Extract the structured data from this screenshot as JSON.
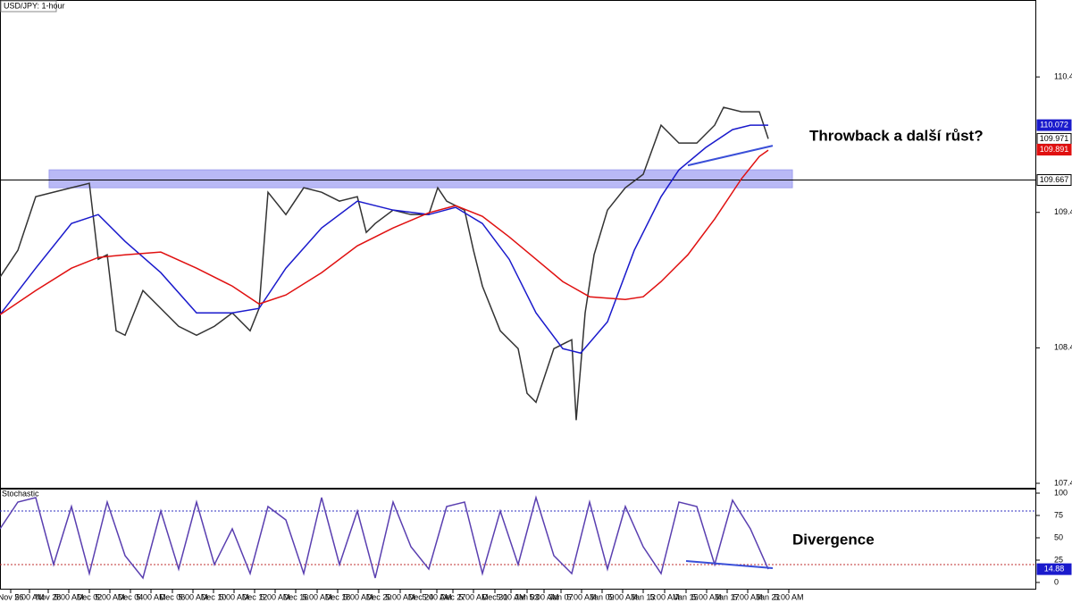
{
  "chart_data": [
    {
      "type": "line",
      "title": "USD/JPY: 1-hour",
      "annotation": "Throwback a další růst?",
      "xlim": [
        0,
        116
      ],
      "ylim": [
        107.395,
        110.996
      ],
      "yticks": [
        107.428,
        108.428,
        109.428,
        110.428
      ],
      "series": [
        {
          "color": "#333333",
          "x": [
            0,
            2,
            4,
            6,
            8,
            10,
            11,
            12,
            13,
            14,
            16,
            18,
            20,
            22,
            24,
            26,
            28,
            29,
            30,
            32,
            34,
            36,
            38,
            40,
            41,
            42,
            44,
            46,
            48,
            49,
            50,
            52,
            53,
            54,
            56,
            58,
            59,
            60,
            62,
            64,
            64.5,
            65.5,
            66.5,
            68,
            70,
            72,
            74,
            76,
            78,
            80,
            81,
            83,
            85,
            86
          ],
          "values": [
            108.95,
            109.148,
            109.544,
            109.577,
            109.61,
            109.643,
            109.082,
            109.115,
            108.554,
            108.521,
            108.851,
            108.719,
            108.587,
            108.521,
            108.587,
            108.686,
            108.554,
            108.719,
            109.577,
            109.412,
            109.61,
            109.577,
            109.511,
            109.544,
            109.28,
            109.346,
            109.445,
            109.412,
            109.412,
            109.61,
            109.511,
            109.445,
            109.148,
            108.884,
            108.554,
            108.422,
            108.092,
            108.026,
            108.422,
            108.488,
            107.894,
            108.686,
            109.115,
            109.445,
            109.61,
            109.709,
            110.072,
            109.94,
            109.94,
            110.072,
            110.204,
            110.171,
            110.171,
            109.971
          ]
        },
        {
          "color": "#1a1acc",
          "x": [
            0,
            4,
            8,
            11,
            14,
            18,
            22,
            26,
            29,
            32,
            36,
            40,
            44,
            48,
            51,
            54,
            57,
            60,
            63,
            65,
            68,
            71,
            74,
            76,
            79,
            82,
            84,
            86
          ],
          "values": [
            108.673,
            109.016,
            109.346,
            109.412,
            109.214,
            108.983,
            108.686,
            108.686,
            108.719,
            109.016,
            109.313,
            109.511,
            109.445,
            109.412,
            109.465,
            109.346,
            109.082,
            108.686,
            108.422,
            108.389,
            108.62,
            109.148,
            109.544,
            109.742,
            109.907,
            110.039,
            110.072,
            110.072
          ]
        },
        {
          "color": "#e01010",
          "x": [
            0,
            4,
            8,
            11,
            14,
            18,
            22,
            26,
            29,
            32,
            36,
            40,
            44,
            48,
            51,
            54,
            57,
            60,
            63,
            66,
            70,
            72,
            74,
            77,
            80,
            83,
            85,
            86
          ],
          "values": [
            108.673,
            108.851,
            109.016,
            109.095,
            109.115,
            109.135,
            109.016,
            108.884,
            108.752,
            108.818,
            108.983,
            109.181,
            109.313,
            109.425,
            109.478,
            109.399,
            109.247,
            109.082,
            108.917,
            108.805,
            108.785,
            108.805,
            108.917,
            109.115,
            109.379,
            109.676,
            109.841,
            109.887
          ]
        }
      ],
      "hline": 109.667,
      "zone": {
        "x": [
          5.5,
          88.7
        ],
        "y": [
          109.61,
          109.742
        ]
      },
      "trendline": {
        "x": [
          77,
          86.5
        ],
        "y": [
          109.775,
          109.92
        ]
      },
      "price_labels": [
        {
          "value": 110.072,
          "color": "#1a1acc"
        },
        {
          "value": 109.971,
          "color": "#ffffff"
        },
        {
          "value": 109.891,
          "color": "#e01010"
        },
        {
          "value": 109.667,
          "color": "#ffffff"
        }
      ]
    },
    {
      "type": "line",
      "title": "Stochastic",
      "annotation": "Divergence",
      "xlim": [
        0,
        116
      ],
      "ylim": [
        -8,
        105
      ],
      "yticks": [
        0,
        25,
        50,
        75,
        100
      ],
      "levels": [
        20,
        80
      ],
      "series": [
        {
          "color": "#5a3fb0",
          "x": [
            0,
            2,
            4,
            6,
            8,
            10,
            12,
            14,
            16,
            18,
            20,
            22,
            24,
            26,
            28,
            30,
            32,
            34,
            36,
            38,
            40,
            42,
            44,
            46,
            48,
            50,
            52,
            54,
            56,
            58,
            60,
            62,
            64,
            66,
            68,
            70,
            72,
            74,
            76,
            78,
            80,
            82,
            84,
            86
          ],
          "values": [
            60,
            90,
            95,
            20,
            85,
            10,
            90,
            30,
            5,
            80,
            15,
            90,
            20,
            60,
            10,
            85,
            70,
            10,
            95,
            20,
            80,
            5,
            90,
            40,
            15,
            85,
            90,
            10,
            80,
            20,
            95,
            30,
            10,
            90,
            15,
            85,
            40,
            10,
            90,
            85,
            20,
            92,
            60,
            14.88
          ]
        }
      ],
      "trendline": {
        "x": [
          76.8,
          86.5
        ],
        "y": [
          24,
          16
        ]
      },
      "value_label": {
        "value": 14.88,
        "color": "#1a1acc"
      },
      "xticks": [
        {
          "value": 1.2,
          "label": "Nov 26"
        },
        {
          "value": 3.3,
          "label": "5:00 AM"
        },
        {
          "value": 5.4,
          "label": "Nov 28"
        },
        {
          "value": 7.7,
          "label": "5:00 AM"
        },
        {
          "value": 10.0,
          "label": "Dec 02"
        },
        {
          "value": 12.3,
          "label": "5:00 AM"
        },
        {
          "value": 14.6,
          "label": "Dec 04"
        },
        {
          "value": 16.9,
          "label": "5:00 AM"
        },
        {
          "value": 19.3,
          "label": "Dec 06"
        },
        {
          "value": 21.6,
          "label": "5:00 AM"
        },
        {
          "value": 23.9,
          "label": "Dec 10"
        },
        {
          "value": 26.2,
          "label": "5:00 AM"
        },
        {
          "value": 28.5,
          "label": "Dec 12"
        },
        {
          "value": 30.8,
          "label": "5:00 AM"
        },
        {
          "value": 33.1,
          "label": "Dec 16"
        },
        {
          "value": 35.5,
          "label": "5:00 AM"
        },
        {
          "value": 37.8,
          "label": "Dec 18"
        },
        {
          "value": 40.1,
          "label": "5:00 AM"
        },
        {
          "value": 42.4,
          "label": "Dec 20"
        },
        {
          "value": 44.8,
          "label": "5:00 AM"
        },
        {
          "value": 47.1,
          "label": "Dec 24"
        },
        {
          "value": 48.9,
          "label": "5:00 AM"
        },
        {
          "value": 50.7,
          "label": "Dec 27"
        },
        {
          "value": 53.0,
          "label": "5:00 AM"
        },
        {
          "value": 55.4,
          "label": "Dec 31"
        },
        {
          "value": 57.2,
          "label": "5:00 AM"
        },
        {
          "value": 59.0,
          "label": "Jan 03"
        },
        {
          "value": 60.9,
          "label": "5:00 AM"
        },
        {
          "value": 62.8,
          "label": "Jan 07"
        },
        {
          "value": 65.1,
          "label": "5:00 AM"
        },
        {
          "value": 67.4,
          "label": "Jan 09"
        },
        {
          "value": 69.7,
          "label": "5:00 AM"
        },
        {
          "value": 72.0,
          "label": "Jan 13"
        },
        {
          "value": 74.4,
          "label": "5:00 AM"
        },
        {
          "value": 76.8,
          "label": "Jan 15"
        },
        {
          "value": 79.1,
          "label": "5:00 AM"
        },
        {
          "value": 81.4,
          "label": "Jan 17"
        },
        {
          "value": 83.7,
          "label": "5:00 AM"
        },
        {
          "value": 86.0,
          "label": "Jan 21"
        },
        {
          "value": 88.3,
          "label": "5:00 AM"
        }
      ]
    }
  ]
}
